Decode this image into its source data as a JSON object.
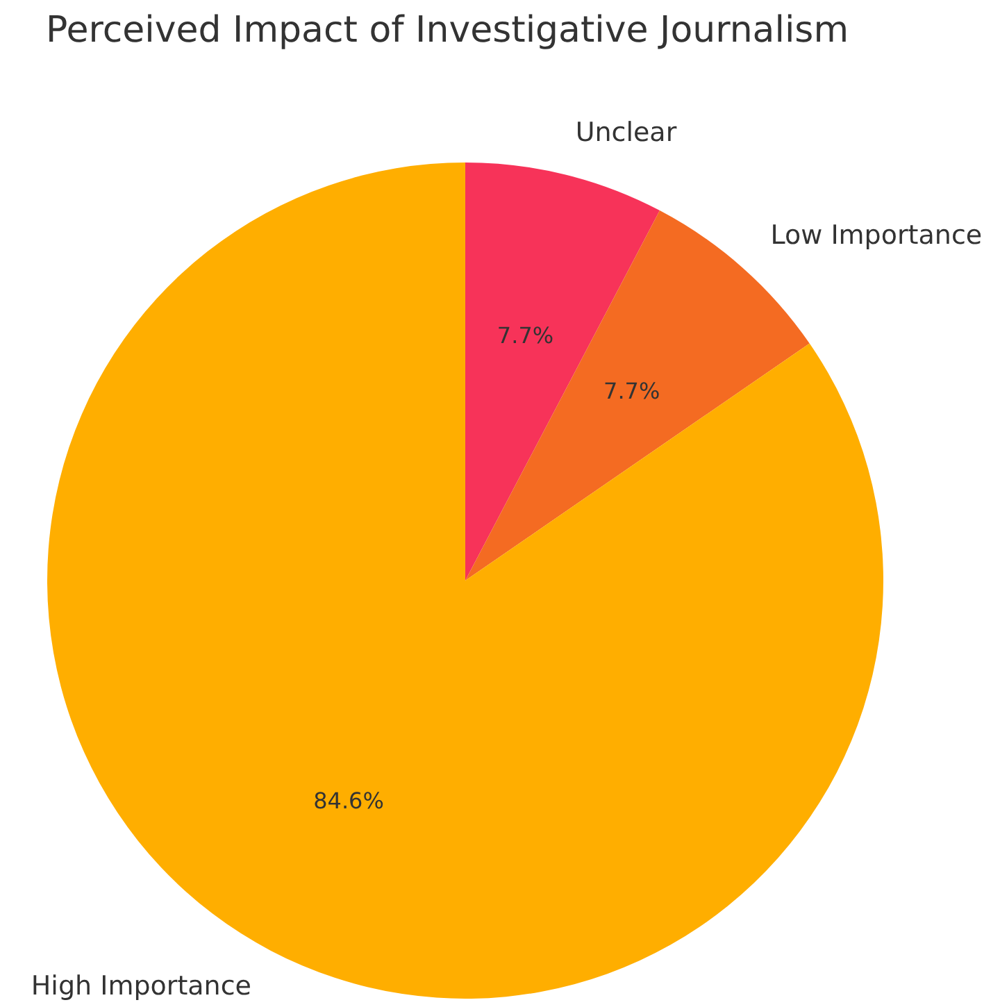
{
  "chart_data": {
    "type": "pie",
    "title": "Perceived Impact of Investigative Journalism",
    "categories": [
      "Unclear",
      "Low Importance",
      "High Importance"
    ],
    "values": [
      7.7,
      7.7,
      84.6
    ],
    "colors": [
      "#f73359",
      "#f46b22",
      "#ffae00"
    ],
    "value_labels": [
      "7.7%",
      "7.7%",
      "84.6%"
    ],
    "legend": false
  }
}
